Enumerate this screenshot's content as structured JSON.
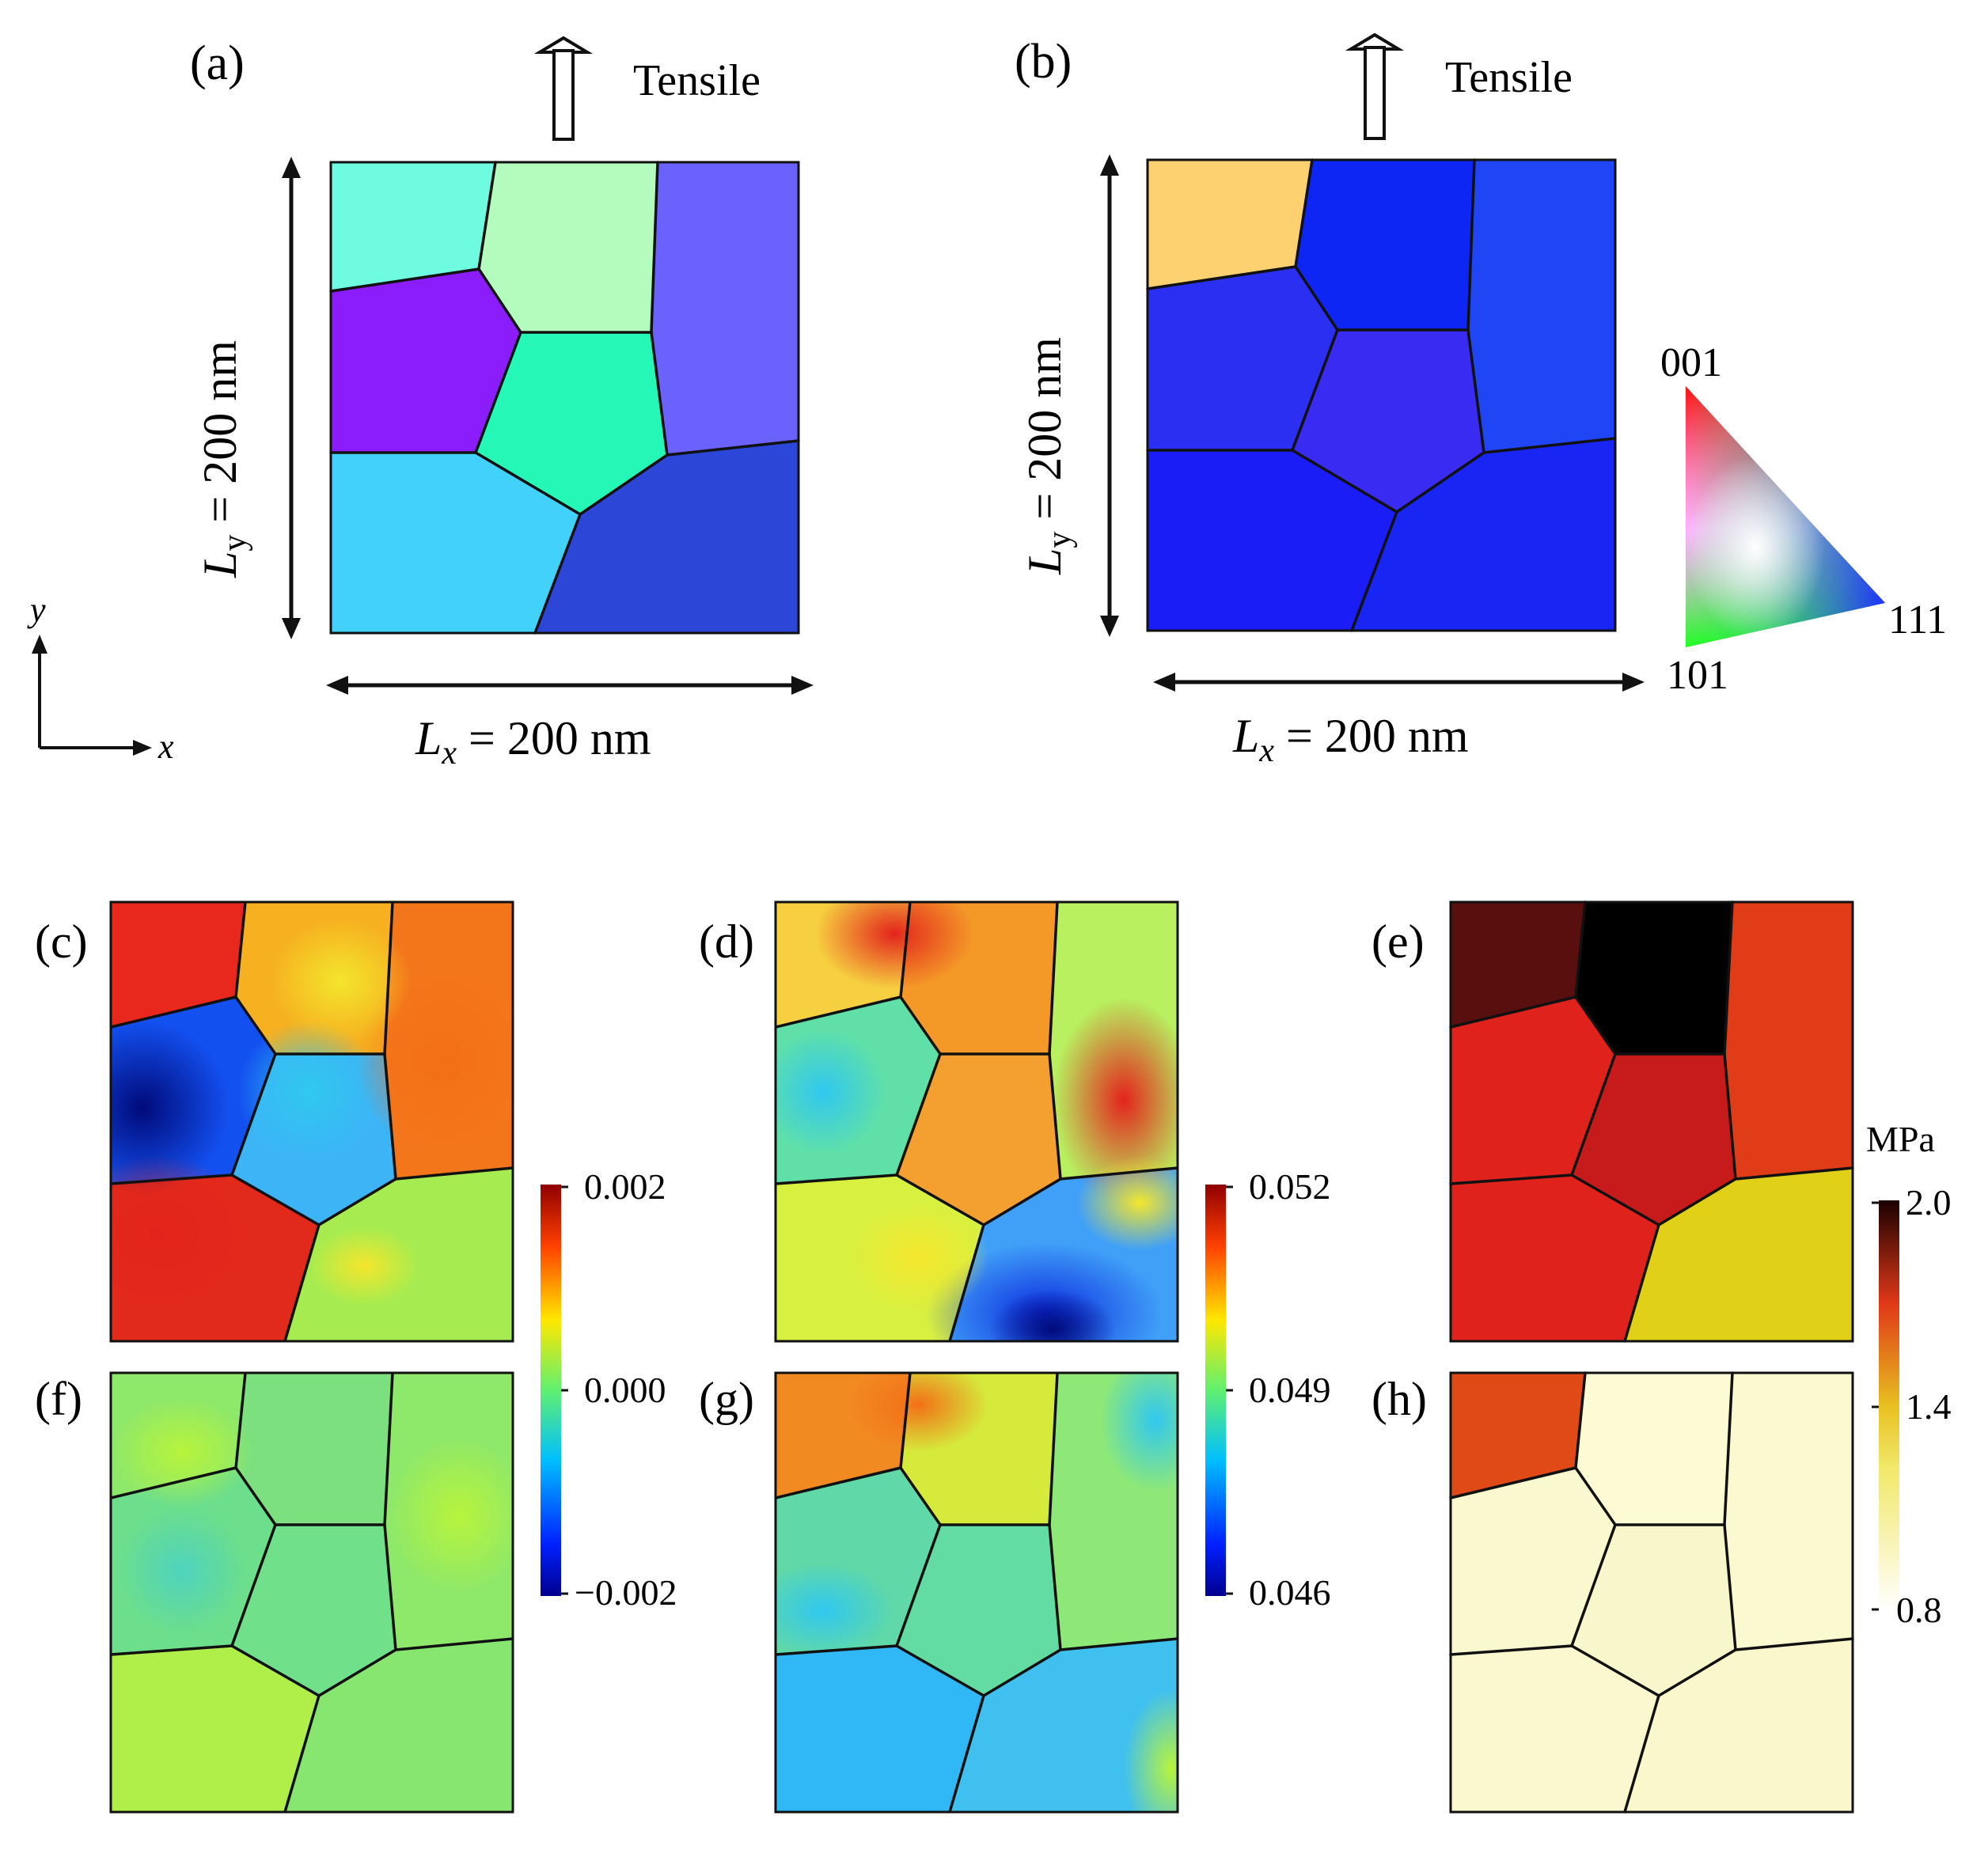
{
  "labels": {
    "a": "(a)",
    "b": "(b)",
    "c": "(c)",
    "d": "(d)",
    "e": "(e)",
    "f": "(f)",
    "g": "(g)",
    "h": "(h)"
  },
  "tensile_label": "Tensile",
  "dimensions": {
    "lx_symbol": "L",
    "lx_subscript": "x",
    "lx_value": " = 200 nm",
    "ly_symbol": "L",
    "ly_subscript": "y",
    "ly_value": " = 200 nm"
  },
  "axes": {
    "x": "x",
    "y": "y"
  },
  "ipf_legend": {
    "top": "001",
    "bottom": "101",
    "right": "111"
  },
  "colorbar_strain": {
    "max": "0.002",
    "mid": "0.000",
    "min": "−0.002"
  },
  "colorbar_strain_yy": {
    "max": "0.052",
    "mid": "0.049",
    "min": "0.046"
  },
  "colorbar_stress": {
    "unit": "MPa",
    "max": "2.0",
    "mid": "1.4",
    "min": "0.8"
  },
  "colors": {
    "grain_boundary": "#111111",
    "a_grains": [
      "#6ffbe0",
      "#b3fcbd",
      "#6b62fd",
      "#8b1dfc",
      "#24f7b6",
      "#41d1fb",
      "#2c46d8"
    ],
    "b_grains": [
      "#fdd070",
      "#0d26f3",
      "#1f45f5",
      "#2a2ff2",
      "#3a2bf3",
      "#1a1df6",
      "#1825f3"
    ],
    "e_grains": [
      "#580f0d",
      "#000000",
      "#e03c17",
      "#e0221d",
      "#c71a1a",
      "#e0221d",
      "#e0d018"
    ],
    "h_grains": [
      "#df4a17",
      "#fdfbd3",
      "#fbf9d0",
      "#faf8cf",
      "#f8f6cb",
      "#fbf8d0",
      "#faf7cd"
    ]
  }
}
